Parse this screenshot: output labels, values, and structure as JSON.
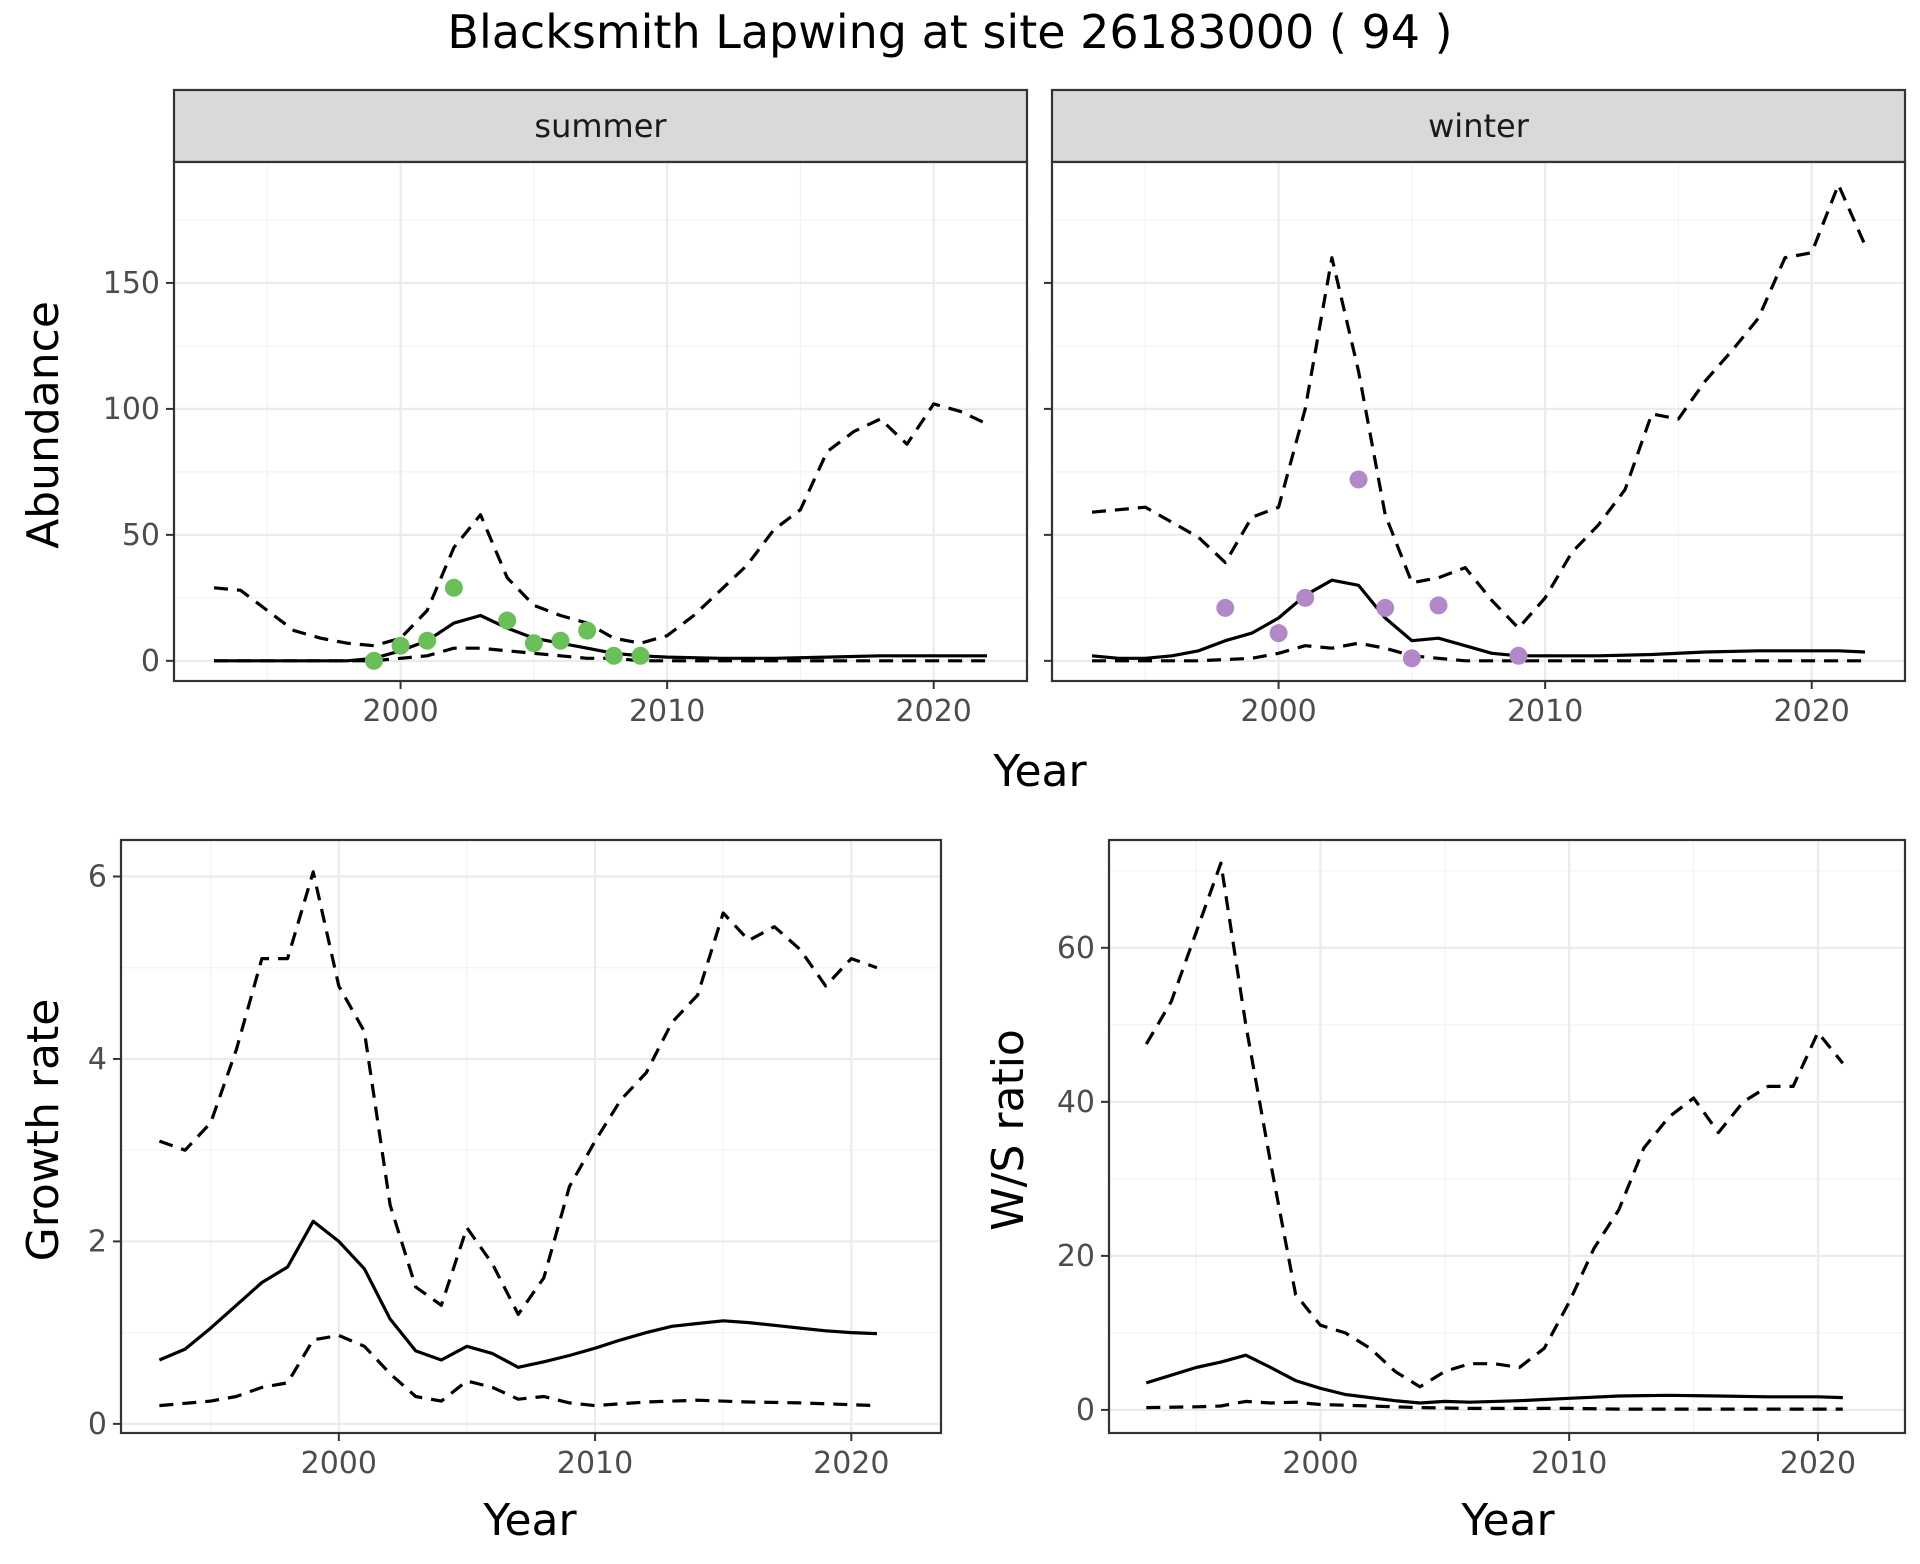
{
  "title": "Blacksmith Lapwing at site 26183000 ( 94 )",
  "top_row": {
    "ylabel": "Abundance",
    "xlabel": "Year",
    "yticks": [
      0,
      50,
      100,
      150
    ],
    "xticks": [
      2000,
      2010,
      2020
    ],
    "panels": [
      {
        "strip": "summer",
        "point_color": "#6bbf59"
      },
      {
        "strip": "winter",
        "point_color": "#b388c9"
      }
    ]
  },
  "bottom_left": {
    "ylabel": "Growth rate",
    "xlabel": "Year",
    "yticks": [
      0,
      2,
      4,
      6
    ],
    "xticks": [
      2000,
      2010,
      2020
    ]
  },
  "bottom_right": {
    "ylabel": "W/S ratio",
    "xlabel": "Year",
    "yticks": [
      0,
      20,
      40,
      60
    ],
    "xticks": [
      2000,
      2010,
      2020
    ]
  },
  "chart_data": [
    {
      "type": "line",
      "facet": "summer",
      "xlim": [
        1991.5,
        2023.5
      ],
      "ylim": [
        -8,
        198
      ],
      "series": [
        {
          "role": "mean",
          "style": "solid",
          "x": [
            1993,
            1995,
            1997,
            1998,
            1999,
            2000,
            2001,
            2002,
            2003,
            2004,
            2005,
            2006,
            2007,
            2008,
            2009,
            2010,
            2012,
            2014,
            2016,
            2018,
            2020,
            2022
          ],
          "y": [
            0,
            0,
            0,
            0,
            1,
            4,
            8,
            15,
            18,
            13,
            9,
            7,
            5,
            3,
            2,
            1.5,
            1,
            1,
            1.5,
            2,
            2,
            2
          ]
        },
        {
          "role": "upper",
          "style": "dashed",
          "x": [
            1993,
            1994,
            1995,
            1996,
            1997,
            1998,
            1999,
            2000,
            2001,
            2002,
            2003,
            2004,
            2005,
            2006,
            2007,
            2008,
            2009,
            2010,
            2011,
            2012,
            2013,
            2014,
            2015,
            2016,
            2017,
            2018,
            2019,
            2020,
            2021,
            2022
          ],
          "y": [
            29,
            28,
            20,
            12,
            9,
            7,
            6,
            9,
            20,
            45,
            58,
            33,
            22,
            18,
            15,
            9,
            7,
            10,
            18,
            28,
            38,
            52,
            60,
            83,
            91,
            96,
            86,
            102,
            99,
            94
          ]
        },
        {
          "role": "lower",
          "style": "dashed",
          "x": [
            1993,
            1995,
            1997,
            1999,
            2000,
            2001,
            2002,
            2003,
            2004,
            2005,
            2006,
            2007,
            2008,
            2009,
            2010,
            2012,
            2014,
            2016,
            2018,
            2020,
            2022
          ],
          "y": [
            0,
            0,
            0,
            0,
            1,
            2,
            5,
            5,
            4,
            3,
            2,
            1,
            1,
            0,
            0,
            0,
            0,
            0,
            0,
            0,
            0
          ]
        },
        {
          "role": "observed",
          "style": "points",
          "x": [
            1999,
            2000,
            2001,
            2002,
            2004,
            2005,
            2006,
            2007,
            2008,
            2009
          ],
          "y": [
            0,
            6,
            8,
            29,
            16,
            7,
            8,
            12,
            2,
            2
          ]
        }
      ]
    },
    {
      "type": "line",
      "facet": "winter",
      "xlim": [
        1991.5,
        2023.5
      ],
      "ylim": [
        -8,
        198
      ],
      "series": [
        {
          "role": "mean",
          "style": "solid",
          "x": [
            1993,
            1994,
            1995,
            1996,
            1997,
            1998,
            1999,
            2000,
            2001,
            2002,
            2003,
            2004,
            2005,
            2006,
            2007,
            2008,
            2009,
            2010,
            2012,
            2014,
            2016,
            2018,
            2020,
            2021,
            2022
          ],
          "y": [
            2,
            1,
            1,
            2,
            4,
            8,
            11,
            17,
            26,
            32,
            30,
            17,
            8,
            9,
            6,
            3,
            2,
            2,
            2,
            2.5,
            3.5,
            4,
            4,
            4,
            3.5
          ]
        },
        {
          "role": "upper",
          "style": "dashed",
          "x": [
            1993,
            1995,
            1996,
            1997,
            1998,
            1999,
            2000,
            2001,
            2002,
            2003,
            2004,
            2005,
            2006,
            2007,
            2008,
            2009,
            2010,
            2011,
            2012,
            2013,
            2014,
            2015,
            2016,
            2017,
            2018,
            2019,
            2020,
            2021,
            2022
          ],
          "y": [
            59,
            61,
            55,
            49,
            39,
            57,
            61,
            100,
            160,
            115,
            58,
            31,
            33,
            37,
            24,
            13,
            25,
            43,
            54,
            68,
            98,
            96,
            111,
            123,
            136,
            160,
            162,
            189,
            165
          ]
        },
        {
          "role": "lower",
          "style": "dashed",
          "x": [
            1993,
            1995,
            1997,
            1999,
            2000,
            2001,
            2002,
            2003,
            2004,
            2005,
            2006,
            2007,
            2008,
            2010,
            2012,
            2014,
            2016,
            2018,
            2020,
            2022
          ],
          "y": [
            0,
            0,
            0,
            1,
            3,
            6,
            5,
            7,
            5,
            2,
            1,
            0,
            0,
            0,
            0,
            0,
            0,
            0,
            0,
            0
          ]
        },
        {
          "role": "observed",
          "style": "points",
          "x": [
            1998,
            2000,
            2001,
            2003,
            2004,
            2005,
            2006,
            2009
          ],
          "y": [
            21,
            11,
            25,
            72,
            21,
            1,
            22,
            2
          ]
        }
      ]
    },
    {
      "type": "line",
      "name": "Growth rate",
      "xlim": [
        1991.5,
        2023.5
      ],
      "ylim": [
        -0.1,
        6.4
      ],
      "series": [
        {
          "role": "mean",
          "style": "solid",
          "x": [
            1993,
            1994,
            1995,
            1996,
            1997,
            1998,
            1999,
            2000,
            2001,
            2002,
            2003,
            2004,
            2005,
            2006,
            2007,
            2008,
            2009,
            2010,
            2011,
            2012,
            2013,
            2014,
            2015,
            2016,
            2017,
            2018,
            2019,
            2020,
            2021
          ],
          "y": [
            0.7,
            0.82,
            1.05,
            1.3,
            1.55,
            1.72,
            2.22,
            2.0,
            1.7,
            1.15,
            0.8,
            0.7,
            0.85,
            0.77,
            0.62,
            0.68,
            0.75,
            0.83,
            0.92,
            1.0,
            1.07,
            1.1,
            1.13,
            1.11,
            1.08,
            1.05,
            1.02,
            1.0,
            0.99
          ]
        },
        {
          "role": "upper",
          "style": "dashed",
          "x": [
            1993,
            1994,
            1995,
            1996,
            1997,
            1998,
            1999,
            2000,
            2001,
            2002,
            2003,
            2004,
            2005,
            2006,
            2007,
            2008,
            2009,
            2010,
            2011,
            2012,
            2013,
            2014,
            2015,
            2016,
            2017,
            2018,
            2019,
            2020,
            2021
          ],
          "y": [
            3.1,
            3.0,
            3.3,
            4.1,
            5.1,
            5.1,
            6.05,
            4.8,
            4.3,
            2.4,
            1.5,
            1.3,
            2.15,
            1.75,
            1.2,
            1.6,
            2.6,
            3.1,
            3.55,
            3.85,
            4.4,
            4.7,
            5.6,
            5.3,
            5.45,
            5.2,
            4.8,
            5.1,
            5.0
          ]
        },
        {
          "role": "lower",
          "style": "dashed",
          "x": [
            1993,
            1995,
            1996,
            1997,
            1998,
            1999,
            2000,
            2001,
            2002,
            2003,
            2004,
            2005,
            2006,
            2007,
            2008,
            2009,
            2010,
            2012,
            2014,
            2016,
            2018,
            2020,
            2021
          ],
          "y": [
            0.2,
            0.25,
            0.3,
            0.4,
            0.45,
            0.92,
            0.97,
            0.85,
            0.55,
            0.3,
            0.25,
            0.47,
            0.4,
            0.27,
            0.3,
            0.23,
            0.2,
            0.24,
            0.26,
            0.24,
            0.23,
            0.21,
            0.2
          ]
        }
      ]
    },
    {
      "type": "line",
      "name": "W/S ratio",
      "xlim": [
        1991.5,
        2023.5
      ],
      "ylim": [
        -3,
        74
      ],
      "series": [
        {
          "role": "mean",
          "style": "solid",
          "x": [
            1993,
            1994,
            1995,
            1996,
            1997,
            1998,
            1999,
            2000,
            2001,
            2002,
            2003,
            2004,
            2005,
            2006,
            2008,
            2010,
            2012,
            2014,
            2016,
            2018,
            2020,
            2021
          ],
          "y": [
            3.5,
            4.5,
            5.5,
            6.2,
            7.1,
            5.5,
            3.8,
            2.8,
            2.0,
            1.6,
            1.2,
            0.9,
            1.1,
            1.0,
            1.2,
            1.5,
            1.8,
            1.9,
            1.8,
            1.7,
            1.7,
            1.6
          ]
        },
        {
          "role": "upper",
          "style": "dashed",
          "x": [
            1993,
            1994,
            1995,
            1996,
            1997,
            1998,
            1999,
            2000,
            2001,
            2002,
            2003,
            2004,
            2005,
            2006,
            2007,
            2008,
            2009,
            2010,
            2011,
            2012,
            2013,
            2014,
            2015,
            2016,
            2017,
            2018,
            2019,
            2020,
            2021
          ],
          "y": [
            47.5,
            53,
            62,
            71,
            50,
            32,
            15,
            11,
            10,
            8,
            5,
            3,
            5,
            6,
            6,
            5.5,
            8,
            14,
            21,
            26,
            34,
            38,
            40.5,
            36,
            40,
            42,
            42,
            49,
            45
          ]
        },
        {
          "role": "lower",
          "style": "dashed",
          "x": [
            1993,
            1995,
            1996,
            1997,
            1998,
            1999,
            2000,
            2002,
            2004,
            2006,
            2008,
            2010,
            2012,
            2014,
            2016,
            2018,
            2020,
            2021
          ],
          "y": [
            0.3,
            0.4,
            0.5,
            1.1,
            0.9,
            1.0,
            0.7,
            0.5,
            0.3,
            0.2,
            0.2,
            0.2,
            0.1,
            0.1,
            0.1,
            0.1,
            0.1,
            0.1
          ]
        }
      ]
    }
  ]
}
